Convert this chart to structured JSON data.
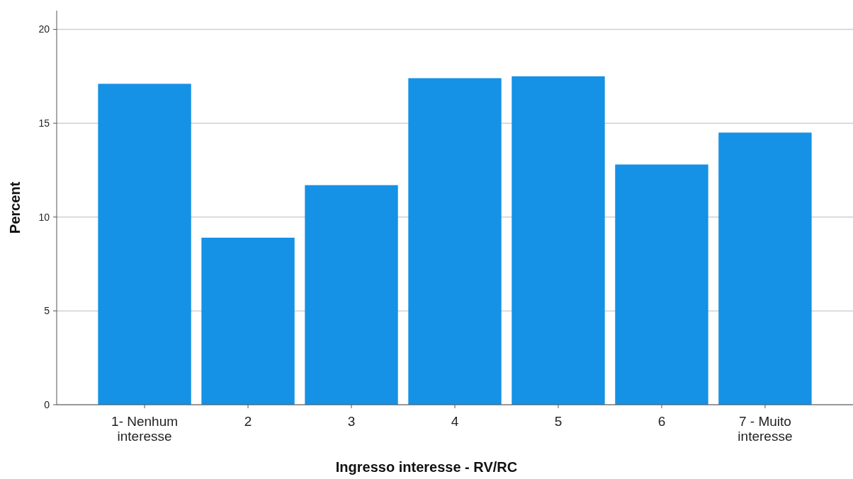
{
  "chart_data": {
    "type": "bar",
    "xlabel": "Ingresso interesse - RV/RC",
    "ylabel": "Percent",
    "categories": [
      "1- Nenhum interesse",
      "2",
      "3",
      "4",
      "5",
      "6",
      "7 - Muito interesse"
    ],
    "values": [
      17.1,
      8.9,
      11.7,
      17.4,
      17.5,
      12.8,
      14.5
    ],
    "color": "#1591e6",
    "ylim": [
      0,
      21
    ],
    "yticks": [
      0,
      5,
      10,
      15,
      20
    ],
    "grid": "y"
  }
}
